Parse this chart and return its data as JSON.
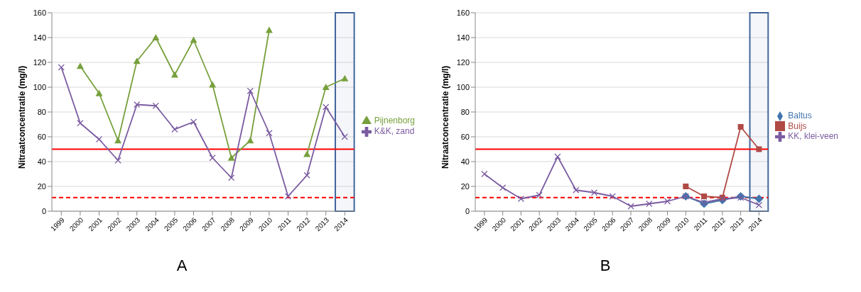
{
  "chart_data": [
    {
      "type": "line",
      "ylabel": "Nitraatconcentratie  (mg/l)",
      "categories": [
        "1999",
        "2000",
        "2001",
        "2002",
        "2003",
        "2004",
        "2005",
        "2006",
        "2007",
        "2008",
        "2009",
        "2010",
        "2011",
        "2012",
        "2013",
        "2014"
      ],
      "series": [
        {
          "name": "Pijnenborg",
          "color": "#77a03c",
          "marker": "triangle",
          "values": [
            null,
            117,
            95,
            57,
            121,
            140,
            110,
            138,
            102,
            43,
            57,
            146,
            null,
            46,
            100,
            107
          ]
        },
        {
          "name": "K&K, zand",
          "color": "#7a5ba0",
          "marker": "cross",
          "values": [
            116,
            71,
            58,
            41,
            86,
            85,
            66,
            72,
            43,
            27,
            97,
            63,
            12,
            29,
            84,
            60
          ]
        }
      ],
      "ylim": [
        0,
        160
      ],
      "yticks": [
        0,
        20,
        40,
        60,
        80,
        100,
        120,
        140,
        160
      ],
      "grid": "y",
      "legend": "right",
      "line_style": "solid",
      "ref_lines": [
        {
          "axis": "y",
          "value": 50,
          "label": null,
          "color": "#ff0000",
          "line_style": "solid"
        },
        {
          "axis": "y",
          "value": 11,
          "label": null,
          "color": "#ff0000",
          "line_style": "dashed"
        }
      ],
      "bands": [
        {
          "axis": "x",
          "from": "2014",
          "to": "2014",
          "color": "#41669c"
        }
      ],
      "annotations": [
        "A"
      ]
    },
    {
      "type": "line",
      "ylabel": "Nitraatconcentratie  (mg/l)",
      "categories": [
        "1999",
        "2000",
        "2001",
        "2002",
        "2003",
        "2004",
        "2005",
        "2006",
        "2007",
        "2008",
        "2009",
        "2010",
        "2011",
        "2012",
        "2013",
        "2014"
      ],
      "series": [
        {
          "name": "Baltus",
          "color": "#4275ac",
          "marker": "diamond",
          "values": [
            null,
            null,
            null,
            null,
            null,
            null,
            null,
            null,
            null,
            null,
            null,
            12,
            6,
            9,
            12,
            10
          ]
        },
        {
          "name": "Buijs",
          "color": "#b04a45",
          "marker": "square",
          "values": [
            null,
            null,
            null,
            null,
            null,
            null,
            null,
            null,
            null,
            null,
            null,
            20,
            12,
            11,
            68,
            50
          ]
        },
        {
          "name": "KK, klei-veen",
          "color": "#7a5ba0",
          "marker": "cross",
          "values": [
            30,
            19,
            10,
            13,
            44,
            17,
            15,
            12,
            4,
            6,
            8,
            12,
            7,
            10,
            11,
            5
          ]
        }
      ],
      "ylim": [
        0,
        160
      ],
      "yticks": [
        0,
        20,
        40,
        60,
        80,
        100,
        120,
        140,
        160
      ],
      "grid": "y",
      "legend": "right",
      "line_style": "solid",
      "ref_lines": [
        {
          "axis": "y",
          "value": 50,
          "label": null,
          "color": "#ff0000",
          "line_style": "solid"
        },
        {
          "axis": "y",
          "value": 11,
          "label": null,
          "color": "#ff0000",
          "line_style": "dashed"
        }
      ],
      "bands": [
        {
          "axis": "x",
          "from": "2014",
          "to": "2014",
          "color": "#41669c"
        }
      ],
      "annotations": [
        "B"
      ]
    }
  ]
}
